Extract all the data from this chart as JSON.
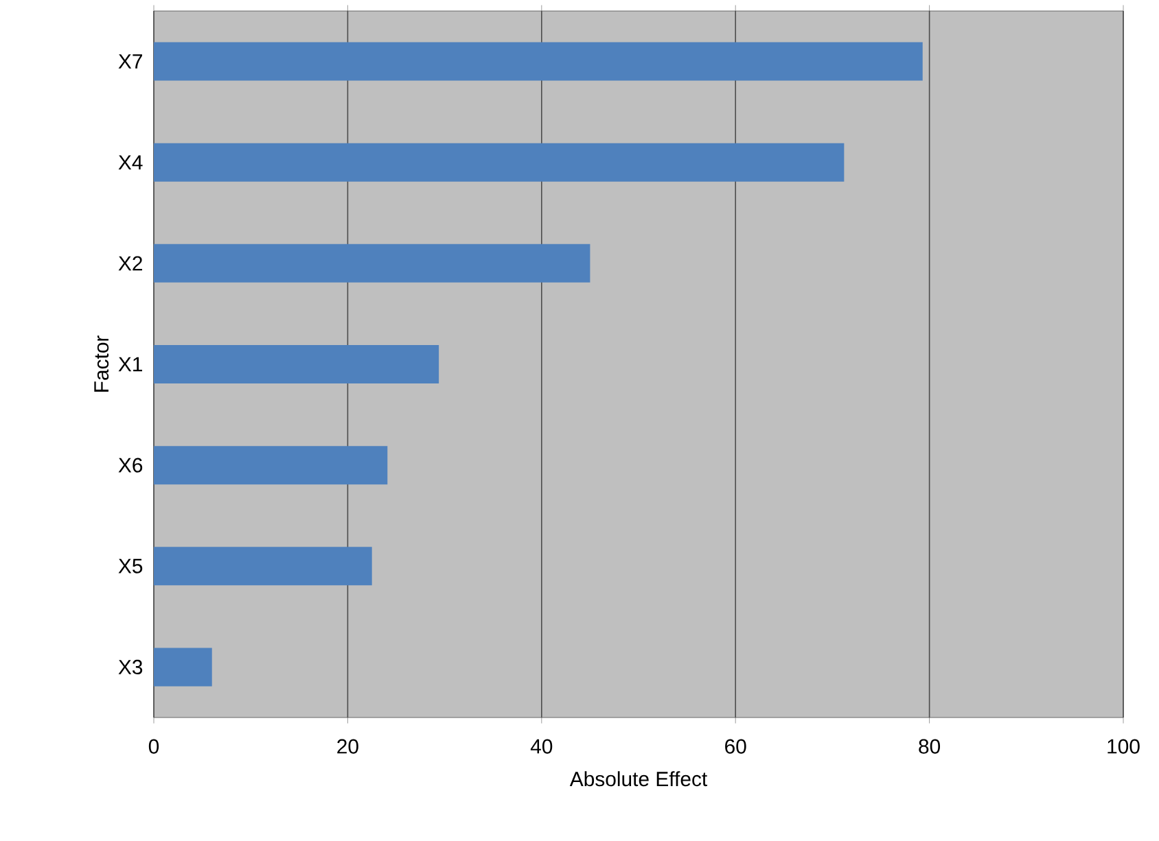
{
  "chart_data": {
    "type": "bar",
    "orientation": "horizontal",
    "xlabel": "Absolute Effect",
    "ylabel": "Factor",
    "categories": [
      "X7",
      "X4",
      "X2",
      "X1",
      "X6",
      "X5",
      "X3"
    ],
    "values": [
      79.3,
      71.2,
      45.0,
      29.4,
      24.1,
      22.5,
      6.0
    ],
    "color": "#4f81bd",
    "xlim": [
      0,
      100
    ],
    "xticks": [
      0,
      20,
      40,
      60,
      80,
      100
    ],
    "grid": "x"
  }
}
